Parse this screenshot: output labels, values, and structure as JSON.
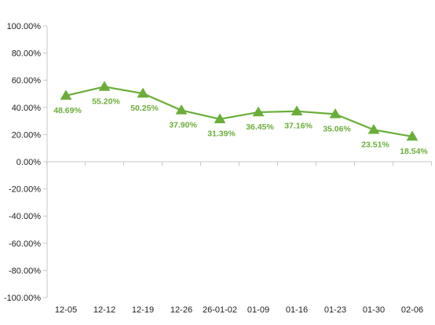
{
  "chart_data": {
    "type": "line",
    "categories": [
      "12-05",
      "12-12",
      "12-19",
      "12-26",
      "26-01-02",
      "01-09",
      "01-16",
      "01-23",
      "01-30",
      "02-06"
    ],
    "series": [
      {
        "values": [
          48.69,
          55.2,
          50.25,
          37.9,
          31.39,
          36.45,
          37.16,
          35.06,
          23.51,
          18.54
        ],
        "labels": [
          "48.69%",
          "55.20%",
          "50.25%",
          "37.90%",
          "31.39%",
          "36.45%",
          "37.16%",
          "35.06%",
          "23.51%",
          "18.54%"
        ],
        "color": "#6aae3a",
        "marker": "triangle"
      }
    ],
    "yticks": [
      100,
      80,
      60,
      40,
      20,
      0,
      -20,
      -40,
      -60,
      -80,
      -100
    ],
    "ytick_labels": [
      "100.00%",
      "80.00%",
      "60.00%",
      "40.00%",
      "20.00%",
      "0.00%",
      "-20.00%",
      "-40.00%",
      "-60.00%",
      "-80.00%",
      "-100.00%"
    ],
    "ylim": [
      -100,
      100
    ],
    "title": "",
    "xlabel": "",
    "ylabel": "",
    "grid": false,
    "legend": "none"
  }
}
